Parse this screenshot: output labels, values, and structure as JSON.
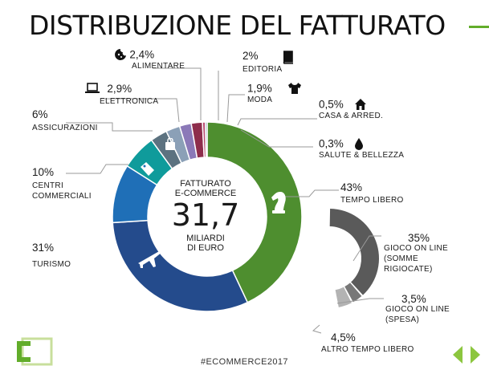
{
  "title": "DISTRIBUZIONE DEL FATTURATO",
  "center": {
    "top_line1": "FATTURATO",
    "top_line2": "E-COMMERCE",
    "value": "31,7",
    "bottom_line1": "MILIARDI",
    "bottom_line2": "DI EURO"
  },
  "footer": "#ECOMMERCE2017",
  "colors": {
    "tempo_libero": "#4e8e2f",
    "turismo": "#244b8c",
    "centri_commerciali": "#1f6fb7",
    "assicurazioni": "#0f9b9b",
    "elettronica": "#5c7280",
    "alimentare": "#8ba0b7",
    "editoria": "#8b79b8",
    "moda": "#8e2d4c",
    "casa": "#b84a70",
    "salute": "#7a8ea7",
    "gioco_somme": "#5a5a5a",
    "gioco_spesa": "#777777",
    "altro_tempo": "#b3b3b3",
    "accent": "#62ad2a"
  },
  "chart_data": [
    {
      "type": "pie",
      "total": "31,7",
      "unit": "MILIARDI DI EURO",
      "slices": [
        {
          "label": "TEMPO LIBERO",
          "value": 43,
          "display": "43%",
          "color_key": "tempo_libero"
        },
        {
          "label": "TURISMO",
          "value": 31,
          "display": "31%",
          "color_key": "turismo"
        },
        {
          "label": "CENTRI COMMERCIALI",
          "value": 10,
          "display": "10%",
          "color_key": "centri_commerciali"
        },
        {
          "label": "ASSICURAZIONI",
          "value": 6,
          "display": "6%",
          "color_key": "assicurazioni"
        },
        {
          "label": "ELETTRONICA",
          "value": 2.9,
          "display": "2,9%",
          "color_key": "elettronica"
        },
        {
          "label": "ALIMENTARE",
          "value": 2.4,
          "display": "2,4%",
          "color_key": "alimentare"
        },
        {
          "label": "EDITORIA",
          "value": 2,
          "display": "2%",
          "color_key": "editoria"
        },
        {
          "label": "MODA",
          "value": 1.9,
          "display": "1,9%",
          "color_key": "moda"
        },
        {
          "label": "CASA & ARRED.",
          "value": 0.5,
          "display": "0,5%",
          "color_key": "casa"
        },
        {
          "label": "SALUTE & BELLEZZA",
          "value": 0.3,
          "display": "0,3%",
          "color_key": "salute"
        }
      ]
    },
    {
      "type": "pie",
      "parent": "TEMPO LIBERO",
      "slices": [
        {
          "label": "GIOCO ON LINE (SOMME RIGIOCATE)",
          "value": 35,
          "display": "35%",
          "color_key": "gioco_somme"
        },
        {
          "label": "GIOCO ON LINE (SPESA)",
          "value": 3.5,
          "display": "3,5%",
          "color_key": "gioco_spesa"
        },
        {
          "label": "ALTRO TEMPO LIBERO",
          "value": 4.5,
          "display": "4,5%",
          "color_key": "altro_tempo"
        }
      ]
    }
  ],
  "labels": {
    "alimentare": {
      "pct": "2,4%",
      "cap": "ALIMENTARE"
    },
    "editoria": {
      "pct": "2%",
      "cap": "EDITORIA"
    },
    "elettronica": {
      "pct": "2,9%",
      "cap": "ELETTRONICA"
    },
    "moda": {
      "pct": "1,9%",
      "cap": "MODA"
    },
    "assicurazioni": {
      "pct": "6%",
      "cap": "ASSICURAZIONI"
    },
    "casa": {
      "pct": "0,5%",
      "cap": "CASA & ARRED."
    },
    "salute": {
      "pct": "0,3%",
      "cap": "SALUTE & BELLEZZA"
    },
    "centri": {
      "pct": "10%",
      "cap1": "CENTRI",
      "cap2": "COMMERCIALI"
    },
    "tempo": {
      "pct": "43%",
      "cap": "TEMPO LIBERO"
    },
    "turismo": {
      "pct": "31%",
      "cap": "TURISMO"
    },
    "gioco_somme": {
      "pct": "35%",
      "cap1": "GIOCO ON LINE",
      "cap2": "(SOMME",
      "cap3": "RIGIOCATE)"
    },
    "gioco_spesa": {
      "pct": "3,5%",
      "cap1": "GIOCO ON LINE",
      "cap2": "(SPESA)"
    },
    "altro": {
      "pct": "4,5%",
      "cap": "ALTRO TEMPO LIBERO"
    }
  },
  "icons": [
    "cookie-icon",
    "book-icon",
    "laptop-icon",
    "tshirt-icon",
    "house-icon",
    "drop-icon",
    "shopping-bag-icon",
    "price-tag-icon",
    "chess-knight-icon",
    "airplane-icon",
    "logo-c-icon",
    "arrow-left-icon",
    "arrow-right-icon"
  ]
}
